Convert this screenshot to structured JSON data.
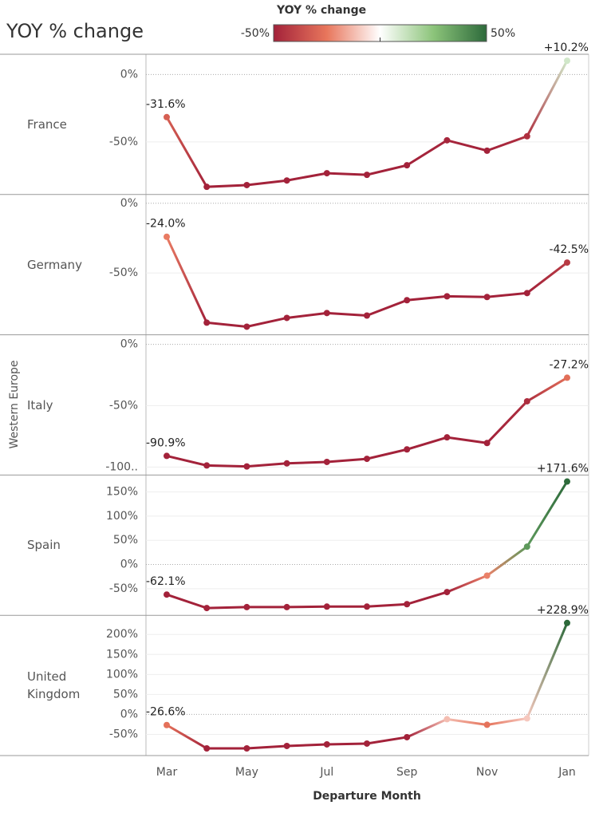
{
  "chart_data": {
    "type": "line",
    "title": "YOY % change",
    "x_label": "Departure Month",
    "group_label": "Western Europe",
    "categories": [
      "Mar",
      null,
      "May",
      null,
      "Jul",
      null,
      "Sep",
      null,
      "Nov",
      null,
      "Jan"
    ],
    "legend": {
      "title": "YOY % change",
      "min": {
        "value": -50,
        "label": "-50%"
      },
      "max": {
        "value": 50,
        "label": "50%"
      },
      "colors": [
        "#a3223a",
        "#e8765c",
        "#ffffff",
        "#8cc47a",
        "#2d6a3b"
      ]
    },
    "grid": true,
    "panels": [
      {
        "name": "France",
        "ylim": [
          -89,
          15
        ],
        "yticks": [
          {
            "value": 0,
            "label": "0%"
          },
          {
            "value": -50,
            "label": "-50%"
          }
        ],
        "values": [
          -31.6,
          -83.3,
          -82,
          -78.6,
          -73.2,
          -74.4,
          -67.3,
          -48.8,
          -56.5,
          -45.8,
          10.2
        ],
        "value_labels": [
          "-31.6%",
          null,
          null,
          null,
          null,
          null,
          null,
          null,
          null,
          null,
          "+10.2%"
        ]
      },
      {
        "name": "Germany",
        "ylim": [
          -94.3,
          6.3
        ],
        "yticks": [
          {
            "value": 0,
            "label": "0%"
          },
          {
            "value": -50,
            "label": "-50%"
          }
        ],
        "values": [
          -24.0,
          -85.6,
          -88.5,
          -82.2,
          -78.7,
          -80.5,
          -69.5,
          -66.7,
          -67.2,
          -64.4,
          -42.5
        ],
        "value_labels": [
          "-24.0%",
          null,
          null,
          null,
          null,
          null,
          null,
          null,
          null,
          null,
          "-42.5%"
        ]
      },
      {
        "name": "Italy",
        "ylim": [
          -106.5,
          7.8
        ],
        "yticks": [
          {
            "value": 0,
            "label": "0%"
          },
          {
            "value": -50,
            "label": "-50%"
          },
          {
            "value": -100,
            "label": "-100.."
          }
        ],
        "values": [
          -90.9,
          -98.7,
          -99.5,
          -97,
          -95.8,
          -93.3,
          -85.6,
          -75.8,
          -80.4,
          -46.4,
          -27.2
        ],
        "value_labels": [
          "-90.9%",
          null,
          null,
          null,
          null,
          null,
          null,
          null,
          null,
          null,
          "-27.2%"
        ]
      },
      {
        "name": "Spain",
        "ylim": [
          -105,
          185
        ],
        "yticks": [
          {
            "value": 150,
            "label": "150%"
          },
          {
            "value": 100,
            "label": "100%"
          },
          {
            "value": 50,
            "label": "50%"
          },
          {
            "value": 0,
            "label": "0%"
          },
          {
            "value": -50,
            "label": "-50%"
          }
        ],
        "values": [
          -62.1,
          -90,
          -88,
          -88,
          -87,
          -87,
          -82,
          -57,
          -23,
          37,
          171.6
        ],
        "value_labels": [
          "-62.1%",
          null,
          null,
          null,
          null,
          null,
          null,
          null,
          null,
          null,
          "+171.6%"
        ]
      },
      {
        "name": "United Kingdom",
        "ylim": [
          -103,
          248
        ],
        "yticks": [
          {
            "value": 200,
            "label": "200%"
          },
          {
            "value": 150,
            "label": "150%"
          },
          {
            "value": 100,
            "label": "100%"
          },
          {
            "value": 50,
            "label": "50%"
          },
          {
            "value": 0,
            "label": "0%"
          },
          {
            "value": -50,
            "label": "-50%"
          }
        ],
        "values": [
          -26.6,
          -85,
          -85,
          -79,
          -75,
          -73,
          -57,
          -12,
          -26,
          -10,
          228.9
        ],
        "value_labels": [
          "-26.6%",
          null,
          null,
          null,
          null,
          null,
          null,
          null,
          null,
          null,
          "+228.9%"
        ]
      }
    ]
  }
}
